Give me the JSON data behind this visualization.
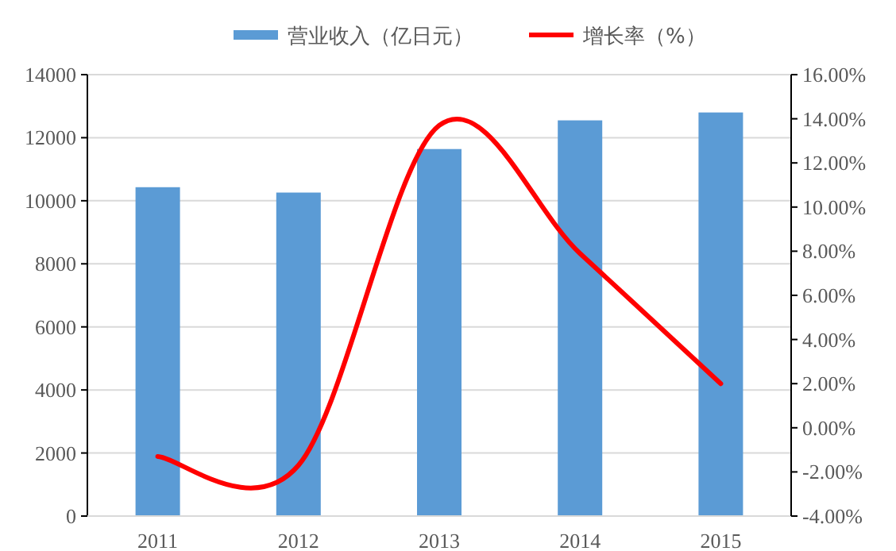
{
  "chart_data": {
    "type": "bar",
    "categories": [
      "2011",
      "2012",
      "2013",
      "2014",
      "2015"
    ],
    "series": [
      {
        "name": "营业收入（亿日元）",
        "color": "#5b9bd5",
        "values": [
          10430,
          10260,
          11640,
          12550,
          12800
        ]
      },
      {
        "name": "增长率（%）",
        "color": "#ff0000",
        "type": "line",
        "axis": "y2",
        "values": [
          -1.3,
          -1.7,
          13.7,
          7.9,
          2.0
        ]
      }
    ],
    "ylim": [
      0,
      14000
    ],
    "yticks": [
      0,
      2000,
      4000,
      6000,
      8000,
      10000,
      12000,
      14000
    ],
    "y2lim": [
      -4,
      16
    ],
    "y2ticks": [
      {
        "value": -4,
        "label": "-4.00%"
      },
      {
        "value": -2,
        "label": "-2.00%"
      },
      {
        "value": 0,
        "label": "0.00%"
      },
      {
        "value": 2,
        "label": "2.00%"
      },
      {
        "value": 4,
        "label": "4.00%"
      },
      {
        "value": 6,
        "label": "6.00%"
      },
      {
        "value": 8,
        "label": "8.00%"
      },
      {
        "value": 10,
        "label": "10.00%"
      },
      {
        "value": 12,
        "label": "12.00%"
      },
      {
        "value": 14,
        "label": "14.00%"
      },
      {
        "value": 16,
        "label": "16.00%"
      }
    ],
    "grid": "y",
    "legend": "top"
  }
}
